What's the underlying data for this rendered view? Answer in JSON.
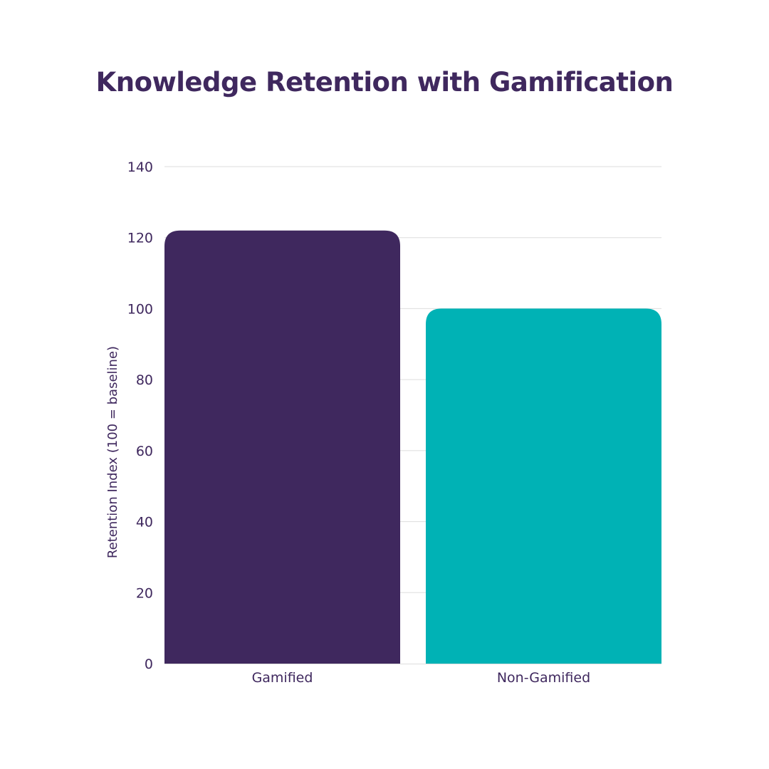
{
  "chart_data": {
    "type": "bar",
    "title": "Knowledge Retention with Gamification",
    "xlabel": "",
    "ylabel": "Retention Index (100 = baseline)",
    "categories": [
      "Gamified",
      "Non-Gamified"
    ],
    "values": [
      122,
      100
    ],
    "bar_colors": [
      "#3f285e",
      "#00b2b5"
    ],
    "ylim": [
      0,
      140
    ],
    "yticks": [
      0,
      20,
      40,
      60,
      80,
      100,
      120,
      140
    ],
    "grid": true,
    "legend": "none"
  },
  "colors": {
    "text": "#3f285e",
    "grid": "#dddddd"
  }
}
